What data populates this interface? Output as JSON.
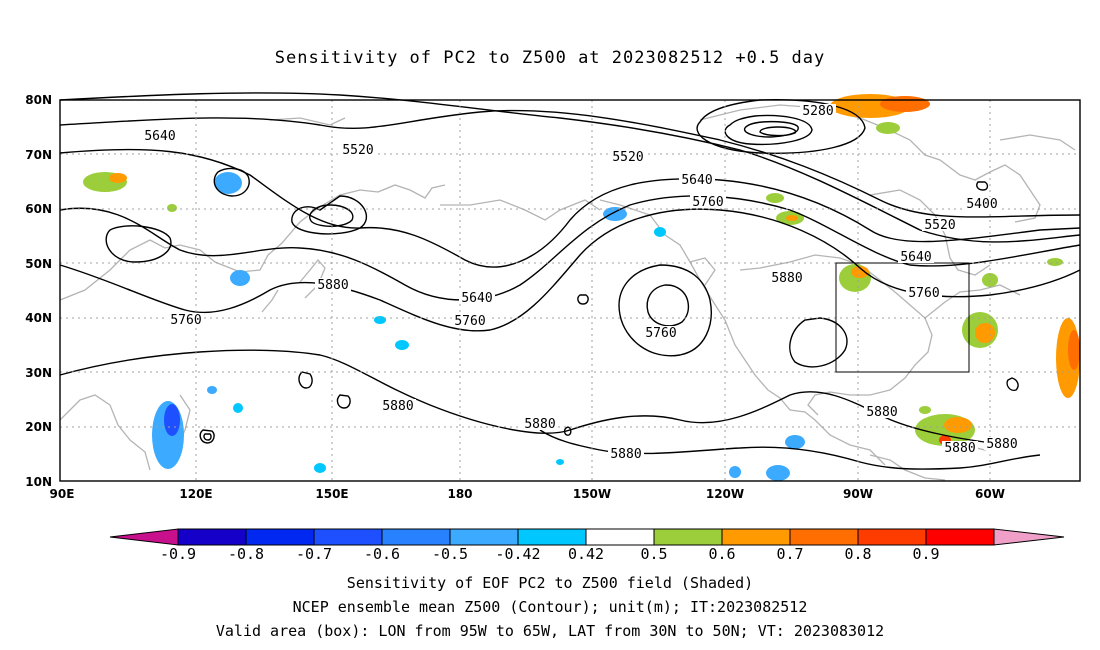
{
  "title": "Sensitivity of PC2 to Z500 at 2023082512 +0.5 day",
  "map": {
    "lat_labels": [
      "80N",
      "70N",
      "60N",
      "50N",
      "40N",
      "30N",
      "20N",
      "10N"
    ],
    "lon_labels": [
      "90E",
      "120E",
      "150E",
      "180",
      "150W",
      "120W",
      "90W",
      "60W"
    ],
    "contour_labels": [
      {
        "text": "5280"
      },
      {
        "text": "5640"
      },
      {
        "text": "5520"
      },
      {
        "text": "5520"
      },
      {
        "text": "5640"
      },
      {
        "text": "5760"
      },
      {
        "text": "5400"
      },
      {
        "text": "5520"
      },
      {
        "text": "5640"
      },
      {
        "text": "5880"
      },
      {
        "text": "5760"
      },
      {
        "text": "5880"
      },
      {
        "text": "5640"
      },
      {
        "text": "5760"
      },
      {
        "text": "5760"
      },
      {
        "text": "5760"
      },
      {
        "text": "5880"
      },
      {
        "text": "5880"
      },
      {
        "text": "5880"
      },
      {
        "text": "5880"
      },
      {
        "text": "5880"
      },
      {
        "text": "5880"
      }
    ],
    "valid_box": {
      "lon_west": -95,
      "lon_east": -65,
      "lat_south": 30,
      "lat_north": 50
    },
    "colors": {
      "land_outline": "#b4b4b4",
      "contour": "#000000",
      "grid": "#a0a0a0"
    }
  },
  "colorbar": {
    "labels": [
      "-0.9",
      "-0.8",
      "-0.7",
      "-0.6",
      "-0.5",
      "-0.42",
      "0.42",
      "0.5",
      "0.6",
      "0.7",
      "0.8",
      "0.9"
    ],
    "colors": [
      "#1400c8",
      "#0028f0",
      "#1e50ff",
      "#2882ff",
      "#3caaff",
      "#00c8ff",
      "#ffffff",
      "#9bce3a",
      "#ff9a00",
      "#ff6e00",
      "#ff3c00",
      "#ff0000"
    ],
    "low_end_color": "#c8108c",
    "high_end_color": "#f0a0c8"
  },
  "caption": {
    "line1": "Sensitivity of EOF PC2 to Z500 field (Shaded)",
    "line2": "NCEP ensemble mean Z500 (Contour); unit(m); IT:2023082512",
    "line3": "Valid area (box): LON from 95W to 65W, LAT from 30N to 50N; VT: 2023083012"
  }
}
